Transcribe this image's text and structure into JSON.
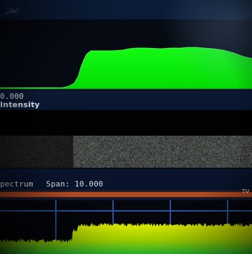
{
  "top_bar": {
    "title": "اطار"
  },
  "plot_top": {
    "x_readout": "0.000",
    "y_label": "Intensity",
    "colors": {
      "fill": "#00ff00",
      "axis": "#2a3b63",
      "background": "#060a12"
    }
  },
  "plot_middle": {
    "colors": {
      "dark": "#020203",
      "noise_dim": "#2a2f2f",
      "noise_bright": "#6c7270"
    }
  },
  "plot_bottom": {
    "title": "pectrum",
    "span_label": "Span: 10.000",
    "marker": "TV",
    "colors": {
      "strip": "#b24a20",
      "grid": "#2f5aa8",
      "fill_yellow": "#e9ff00",
      "fill_green": "#36ff36"
    }
  }
}
